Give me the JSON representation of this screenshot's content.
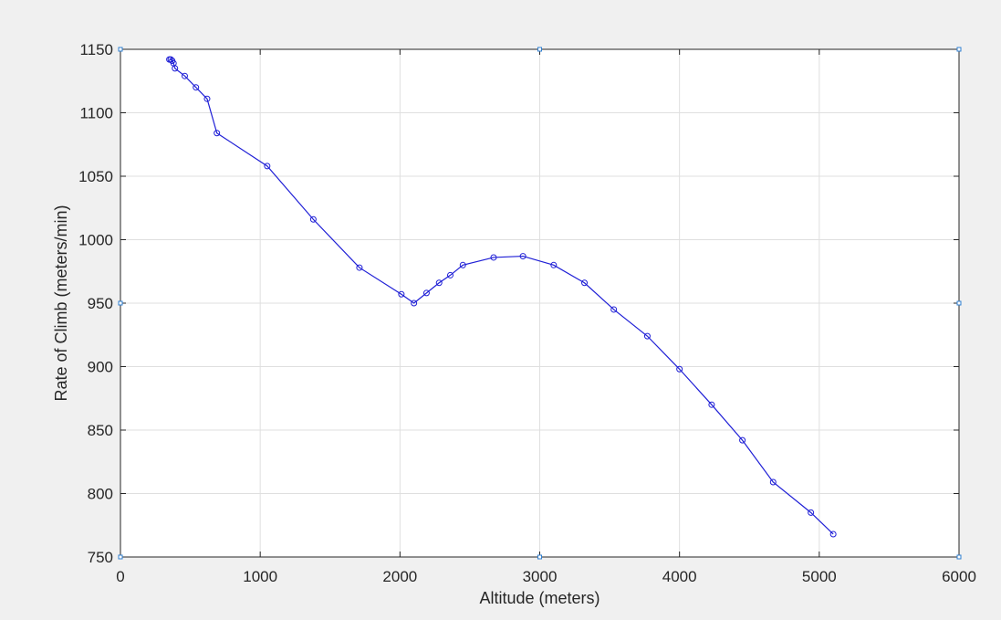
{
  "chart_data": {
    "type": "line",
    "title": "",
    "xlabel": "Altitude (meters)",
    "ylabel": "Rate of Climb (meters/min)",
    "xlim": [
      0,
      6000
    ],
    "ylim": [
      750,
      1150
    ],
    "xticks": [
      0,
      1000,
      2000,
      3000,
      4000,
      5000,
      6000
    ],
    "yticks": [
      750,
      800,
      850,
      900,
      950,
      1000,
      1050,
      1100,
      1150
    ],
    "grid": true,
    "marker": "circle",
    "series": [
      {
        "color": "#1f1fd6",
        "x": [
          350,
          360,
          370,
          380,
          390,
          460,
          540,
          620,
          690,
          1050,
          1380,
          1710,
          2010,
          2100,
          2190,
          2280,
          2360,
          2450,
          2670,
          2880,
          3100,
          3320,
          3530,
          3770,
          4000,
          4230,
          4450,
          4670,
          4940,
          5100
        ],
        "y": [
          1142,
          1142,
          1141,
          1139,
          1135,
          1129,
          1120,
          1111,
          1084,
          1058,
          1016,
          978,
          957,
          950,
          958,
          966,
          972,
          980,
          986,
          987,
          980,
          966,
          945,
          924,
          898,
          870,
          842,
          809,
          785,
          768
        ]
      }
    ]
  },
  "colors": {
    "figure_background": "#f0f0f0",
    "axes_background": "#ffffff",
    "grid": "#dfdfdf",
    "axis_line": "#262626",
    "series": "#1f1fd6",
    "handle": "#2f7fd0"
  }
}
